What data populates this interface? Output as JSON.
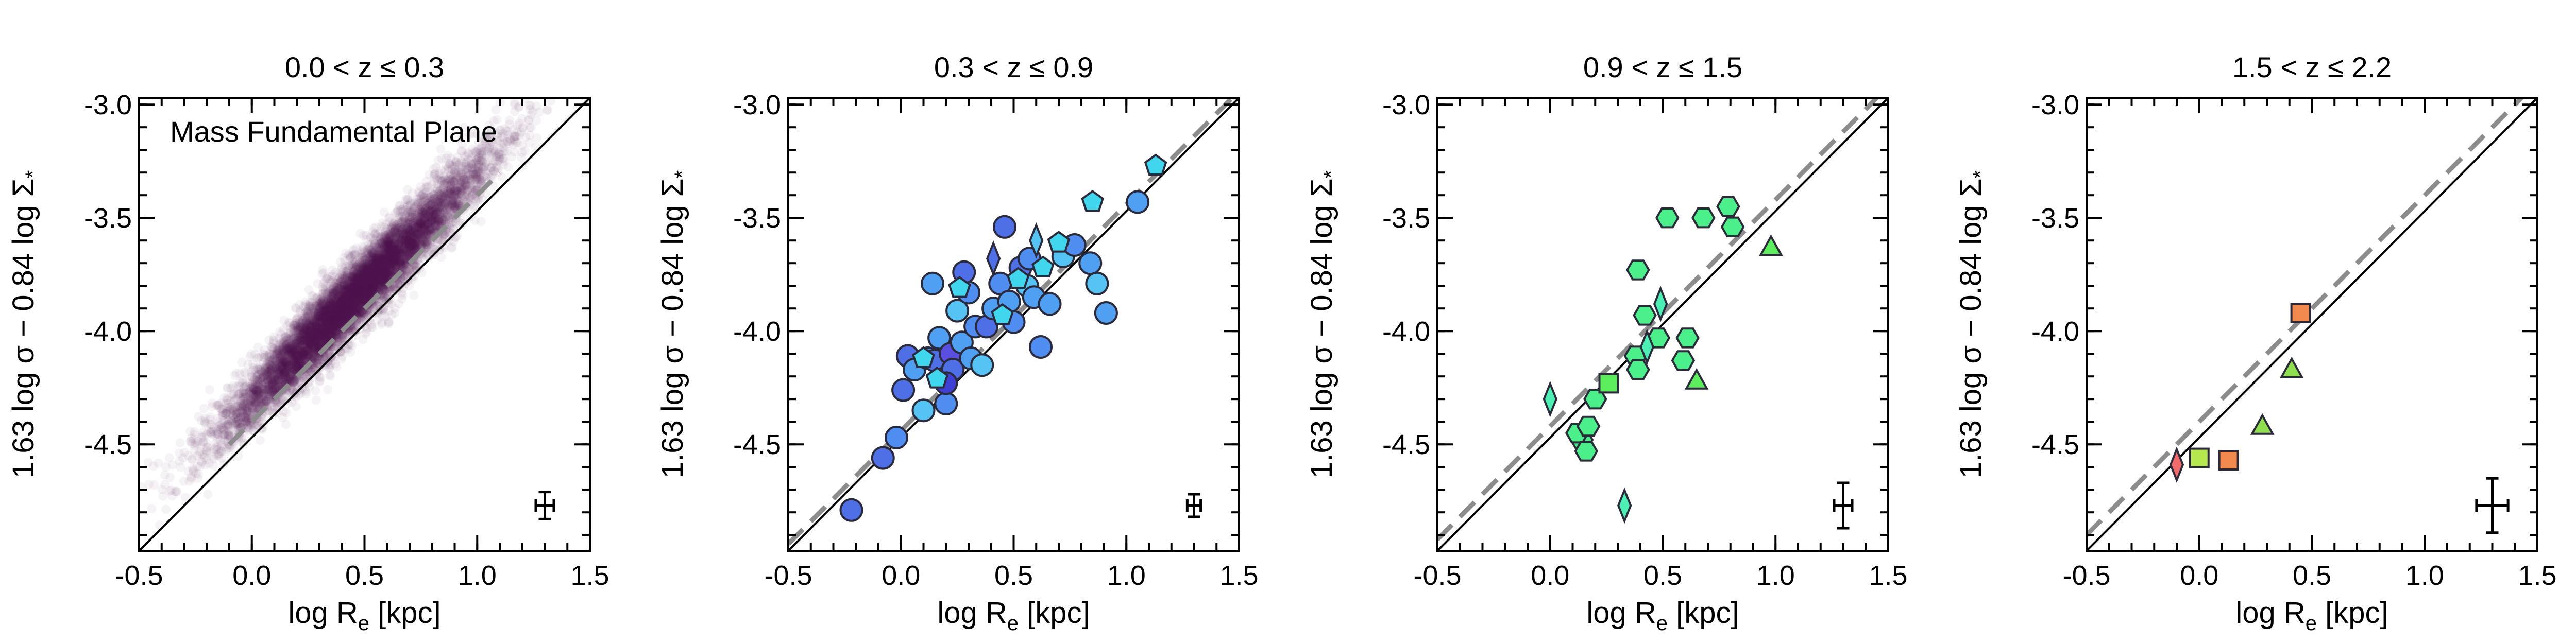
{
  "figure": {
    "xlabel": "log R_e [kpc]",
    "ylabel": "1.63 log σ − 0.84 log Σ_*",
    "xlim": [
      -0.5,
      1.5
    ],
    "ylim": [
      -4.97,
      -2.97
    ],
    "xticks": [
      -0.5,
      0.0,
      0.5,
      1.0,
      1.5
    ],
    "xtick_labels": [
      "-0.5",
      "0.0",
      "0.5",
      "1.0",
      "1.5"
    ],
    "yticks": [
      -3.0,
      -3.5,
      -4.0,
      -4.5
    ],
    "ytick_labels": [
      "-3.0",
      "-3.5",
      "-4.0",
      "-4.5"
    ]
  },
  "chart_data": [
    {
      "type": "scatter",
      "title": "0.0 < z ≤ 0.3",
      "annotation": "Mass Fundamental Plane",
      "density_cloud": {
        "color": "#4a0a4f",
        "center": [
          0.45,
          -3.85
        ],
        "slope": 1.0,
        "spread_x": 0.28,
        "spread_y": 0.14
      },
      "one_to_one_line": {
        "x": [
          -0.5,
          1.5
        ],
        "y": [
          -4.97,
          -2.97
        ],
        "color": "#000000"
      },
      "fit_line": {
        "x": [
          -0.1,
          1.1
        ],
        "y": [
          -4.5,
          -3.3
        ],
        "color": "#8c8c8c",
        "dashed": true
      },
      "error_bar": {
        "x": 1.3,
        "y": -4.77,
        "xerr": 0.04,
        "yerr": 0.06
      },
      "points": []
    },
    {
      "type": "scatter",
      "title": "0.3 < z ≤ 0.9",
      "one_to_one_line": {
        "x": [
          -0.5,
          1.5
        ],
        "y": [
          -4.97,
          -2.97
        ],
        "color": "#000000"
      },
      "fit_line": {
        "x": [
          -0.5,
          1.5
        ],
        "y": [
          -4.94,
          -2.94
        ],
        "color": "#8c8c8c",
        "dashed": true
      },
      "error_bar": {
        "x": 1.3,
        "y": -4.77,
        "xerr": 0.03,
        "yerr": 0.05
      },
      "points": [
        {
          "x": -0.22,
          "y": -4.79,
          "shape": "circle",
          "color": "#4f6fe6"
        },
        {
          "x": -0.08,
          "y": -4.56,
          "shape": "circle",
          "color": "#4f6fe6"
        },
        {
          "x": -0.02,
          "y": -4.47,
          "shape": "circle",
          "color": "#4f8ef0"
        },
        {
          "x": 0.01,
          "y": -4.26,
          "shape": "circle",
          "color": "#4f6fe6"
        },
        {
          "x": 0.03,
          "y": -4.11,
          "shape": "circle",
          "color": "#4f6fe6"
        },
        {
          "x": 0.06,
          "y": -4.17,
          "shape": "circle",
          "color": "#4fa0f2"
        },
        {
          "x": 0.1,
          "y": -4.35,
          "shape": "circle",
          "color": "#55c4f5"
        },
        {
          "x": 0.12,
          "y": -4.12,
          "shape": "circle",
          "color": "#4f8ef0"
        },
        {
          "x": 0.14,
          "y": -3.79,
          "shape": "circle",
          "color": "#4fa0f2"
        },
        {
          "x": 0.15,
          "y": -4.13,
          "shape": "circle",
          "color": "#4f6fe6"
        },
        {
          "x": 0.17,
          "y": -4.03,
          "shape": "circle",
          "color": "#4fa0f2"
        },
        {
          "x": 0.19,
          "y": -4.21,
          "shape": "circle",
          "color": "#4f6fe6"
        },
        {
          "x": 0.2,
          "y": -4.32,
          "shape": "circle",
          "color": "#4f8ef0"
        },
        {
          "x": 0.22,
          "y": -4.1,
          "shape": "circle",
          "color": "#5a4fe0"
        },
        {
          "x": 0.23,
          "y": -4.17,
          "shape": "circle",
          "color": "#4f6fe6"
        },
        {
          "x": 0.25,
          "y": -3.91,
          "shape": "circle",
          "color": "#55c4f5"
        },
        {
          "x": 0.27,
          "y": -4.05,
          "shape": "circle",
          "color": "#4fa0f2"
        },
        {
          "x": 0.3,
          "y": -3.83,
          "shape": "circle",
          "color": "#4f8ef0"
        },
        {
          "x": 0.31,
          "y": -4.12,
          "shape": "circle",
          "color": "#4fa0f2"
        },
        {
          "x": 0.33,
          "y": -3.98,
          "shape": "circle",
          "color": "#4f8ef0"
        },
        {
          "x": 0.36,
          "y": -4.15,
          "shape": "circle",
          "color": "#55c4f5"
        },
        {
          "x": 0.38,
          "y": -3.98,
          "shape": "circle",
          "color": "#4f6fe6"
        },
        {
          "x": 0.41,
          "y": -3.9,
          "shape": "circle",
          "color": "#4fa0f2"
        },
        {
          "x": 0.44,
          "y": -3.79,
          "shape": "circle",
          "color": "#4f8ef0"
        },
        {
          "x": 0.46,
          "y": -3.54,
          "shape": "circle",
          "color": "#4f6fe6"
        },
        {
          "x": 0.48,
          "y": -3.87,
          "shape": "circle",
          "color": "#4fa0f2"
        },
        {
          "x": 0.5,
          "y": -3.96,
          "shape": "circle",
          "color": "#4f8ef0"
        },
        {
          "x": 0.53,
          "y": -3.72,
          "shape": "circle",
          "color": "#4f6fe6"
        },
        {
          "x": 0.56,
          "y": -3.8,
          "shape": "circle",
          "color": "#55c4f5"
        },
        {
          "x": 0.59,
          "y": -3.85,
          "shape": "circle",
          "color": "#4fa0f2"
        },
        {
          "x": 0.62,
          "y": -4.07,
          "shape": "circle",
          "color": "#4f8ef0"
        },
        {
          "x": 0.66,
          "y": -3.88,
          "shape": "circle",
          "color": "#4fa0f2"
        },
        {
          "x": 0.72,
          "y": -3.67,
          "shape": "circle",
          "color": "#55c4f5"
        },
        {
          "x": 0.77,
          "y": -3.62,
          "shape": "circle",
          "color": "#4f8ef0"
        },
        {
          "x": 0.84,
          "y": -3.7,
          "shape": "circle",
          "color": "#4fa0f2"
        },
        {
          "x": 0.87,
          "y": -3.79,
          "shape": "circle",
          "color": "#55c4f5"
        },
        {
          "x": 0.91,
          "y": -3.92,
          "shape": "circle",
          "color": "#4fa0f2"
        },
        {
          "x": 0.2,
          "y": -4.23,
          "shape": "circle",
          "color": "#3f3fd6"
        },
        {
          "x": 0.28,
          "y": -3.74,
          "shape": "circle",
          "color": "#4f6fe6"
        },
        {
          "x": 0.57,
          "y": -3.68,
          "shape": "circle",
          "color": "#4f8ef0"
        },
        {
          "x": 0.1,
          "y": -4.12,
          "shape": "pentagon",
          "color": "#40d6ee"
        },
        {
          "x": 0.16,
          "y": -4.21,
          "shape": "pentagon",
          "color": "#40d6ee"
        },
        {
          "x": 0.26,
          "y": -3.81,
          "shape": "pentagon",
          "color": "#40d6ee"
        },
        {
          "x": 0.45,
          "y": -3.93,
          "shape": "pentagon",
          "color": "#40d6ee"
        },
        {
          "x": 0.52,
          "y": -3.77,
          "shape": "pentagon",
          "color": "#40d6ee"
        },
        {
          "x": 0.63,
          "y": -3.72,
          "shape": "pentagon",
          "color": "#40d6ee"
        },
        {
          "x": 0.7,
          "y": -3.61,
          "shape": "pentagon",
          "color": "#40d6ee"
        },
        {
          "x": 0.85,
          "y": -3.43,
          "shape": "pentagon",
          "color": "#40d6ee"
        },
        {
          "x": 1.13,
          "y": -3.27,
          "shape": "pentagon",
          "color": "#40d6ee"
        },
        {
          "x": 0.41,
          "y": -3.68,
          "shape": "diamond",
          "color": "#4f6fe6"
        },
        {
          "x": 0.6,
          "y": -3.6,
          "shape": "diamond",
          "color": "#55c4f5"
        },
        {
          "x": 1.05,
          "y": -3.43,
          "shape": "circle",
          "color": "#4fa0f2"
        }
      ]
    },
    {
      "type": "scatter",
      "title": "0.9 < z ≤ 1.5",
      "one_to_one_line": {
        "x": [
          -0.5,
          1.5
        ],
        "y": [
          -4.97,
          -2.97
        ],
        "color": "#000000"
      },
      "fit_line": {
        "x": [
          -0.5,
          1.5
        ],
        "y": [
          -4.92,
          -2.92
        ],
        "color": "#8c8c8c",
        "dashed": true
      },
      "error_bar": {
        "x": 1.3,
        "y": -4.77,
        "xerr": 0.04,
        "yerr": 0.1
      },
      "points": [
        {
          "x": 0.52,
          "y": -3.5,
          "shape": "hexagon",
          "color": "#4cf08a"
        },
        {
          "x": 0.68,
          "y": -3.5,
          "shape": "hexagon",
          "color": "#4cf08a"
        },
        {
          "x": 0.79,
          "y": -3.45,
          "shape": "hexagon",
          "color": "#4cf08a"
        },
        {
          "x": 0.81,
          "y": -3.54,
          "shape": "hexagon",
          "color": "#4cf08a"
        },
        {
          "x": 0.39,
          "y": -3.73,
          "shape": "hexagon",
          "color": "#4cf08a"
        },
        {
          "x": 0.42,
          "y": -3.93,
          "shape": "hexagon",
          "color": "#4cf08a"
        },
        {
          "x": 0.48,
          "y": -4.03,
          "shape": "hexagon",
          "color": "#4cf08a"
        },
        {
          "x": 0.61,
          "y": -4.03,
          "shape": "hexagon",
          "color": "#4cf08a"
        },
        {
          "x": 0.38,
          "y": -4.11,
          "shape": "hexagon",
          "color": "#4cf08a"
        },
        {
          "x": 0.39,
          "y": -4.17,
          "shape": "hexagon",
          "color": "#4cf08a"
        },
        {
          "x": 0.59,
          "y": -4.13,
          "shape": "hexagon",
          "color": "#4cf08a"
        },
        {
          "x": 0.14,
          "y": -4.48,
          "shape": "hexagon",
          "color": "#4cf08a"
        },
        {
          "x": 0.12,
          "y": -4.45,
          "shape": "hexagon",
          "color": "#4cf08a"
        },
        {
          "x": 0.17,
          "y": -4.42,
          "shape": "hexagon",
          "color": "#4cf08a"
        },
        {
          "x": 0.16,
          "y": -4.53,
          "shape": "hexagon",
          "color": "#4cf08a"
        },
        {
          "x": 0.2,
          "y": -4.3,
          "shape": "hexagon",
          "color": "#4cf08a"
        },
        {
          "x": 0.26,
          "y": -4.23,
          "shape": "square",
          "color": "#5cee5c"
        },
        {
          "x": 0.98,
          "y": -3.63,
          "shape": "triangle",
          "color": "#5cee5c"
        },
        {
          "x": 0.65,
          "y": -4.22,
          "shape": "triangle",
          "color": "#5cee5c"
        },
        {
          "x": 0.33,
          "y": -4.77,
          "shape": "diamond",
          "color": "#4cf0b4"
        },
        {
          "x": 0.0,
          "y": -4.3,
          "shape": "diamond",
          "color": "#4cf0b4"
        },
        {
          "x": 0.49,
          "y": -3.88,
          "shape": "diamond",
          "color": "#4cf0b4"
        },
        {
          "x": 0.43,
          "y": -4.07,
          "shape": "diamond",
          "color": "#4cf0b4"
        }
      ]
    },
    {
      "type": "scatter",
      "title": "1.5 < z ≤ 2.2",
      "one_to_one_line": {
        "x": [
          -0.5,
          1.5
        ],
        "y": [
          -4.97,
          -2.97
        ],
        "color": "#000000"
      },
      "fit_line": {
        "x": [
          -0.5,
          1.5
        ],
        "y": [
          -4.9,
          -2.9
        ],
        "color": "#8c8c8c",
        "dashed": true
      },
      "error_bar": {
        "x": 1.3,
        "y": -4.77,
        "xerr": 0.07,
        "yerr": 0.12
      },
      "points": [
        {
          "x": 0.45,
          "y": -3.92,
          "shape": "square",
          "color": "#f2894f"
        },
        {
          "x": 0.13,
          "y": -4.57,
          "shape": "square",
          "color": "#f2894f"
        },
        {
          "x": 0.0,
          "y": -4.56,
          "shape": "square",
          "color": "#b5e84f"
        },
        {
          "x": 0.41,
          "y": -4.17,
          "shape": "triangle",
          "color": "#8fe04f"
        },
        {
          "x": 0.28,
          "y": -4.42,
          "shape": "triangle",
          "color": "#8fe04f"
        },
        {
          "x": -0.1,
          "y": -4.59,
          "shape": "diamond",
          "color": "#f26a6a"
        }
      ]
    }
  ]
}
